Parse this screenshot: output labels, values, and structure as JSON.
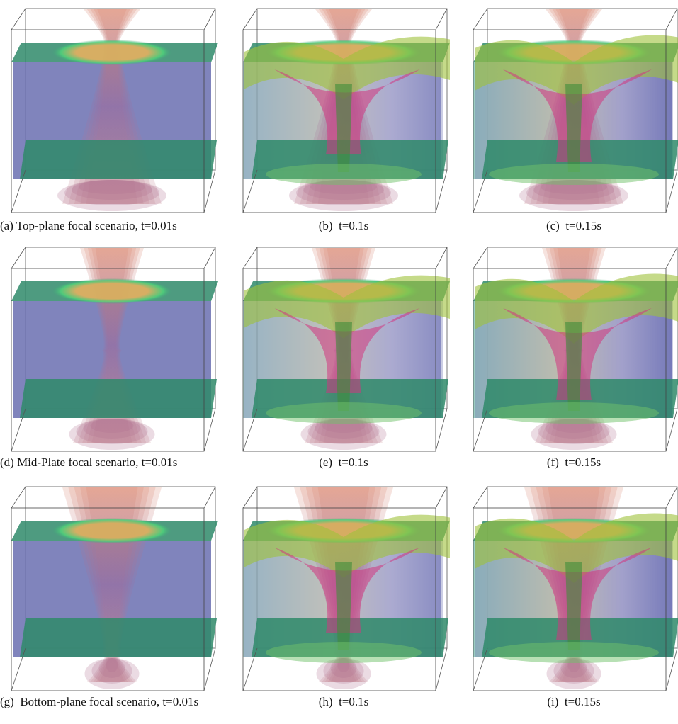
{
  "panels": [
    {
      "caption": "(a) Top-plane focal scenario, t=0.01s"
    },
    {
      "caption": "(b)  t=0.1s"
    },
    {
      "caption": "(c)  t=0.15s"
    },
    {
      "caption": "(d) Mid-Plate focal scenario, t=0.01s"
    },
    {
      "caption": "(e)  t=0.1s"
    },
    {
      "caption": "(f)  t=0.15s"
    },
    {
      "caption": "(g)  Bottom-plane focal scenario, t=0.01s"
    },
    {
      "caption": "(h)  t=0.1s"
    },
    {
      "caption": "(i)  t=0.15s"
    }
  ]
}
